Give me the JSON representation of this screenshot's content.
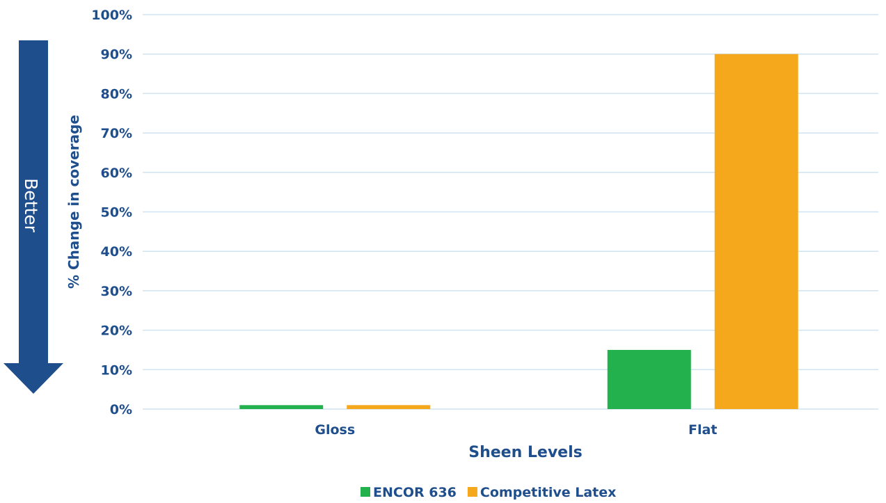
{
  "chart_data": {
    "type": "bar",
    "categories": [
      "Gloss",
      "Flat"
    ],
    "series": [
      {
        "name": "ENCOR 636",
        "values": [
          1,
          15
        ],
        "color": "#22b14c"
      },
      {
        "name": "Competitive Latex",
        "values": [
          1,
          90
        ],
        "color": "#f5a81c"
      }
    ],
    "xlabel": "Sheen Levels",
    "ylabel": "% Change in coverage",
    "ylim": [
      0,
      100
    ],
    "yticks": [
      0,
      10,
      20,
      30,
      40,
      50,
      60,
      70,
      80,
      90,
      100
    ],
    "ytick_suffix": "%",
    "grid": true,
    "legend_position": "bottom-center"
  },
  "annotation": {
    "arrow_label": "Better",
    "arrow_direction": "down",
    "arrow_color": "#1f4e8c"
  },
  "colors": {
    "text": "#1f4e8c",
    "grid": "#cfe3f1"
  }
}
